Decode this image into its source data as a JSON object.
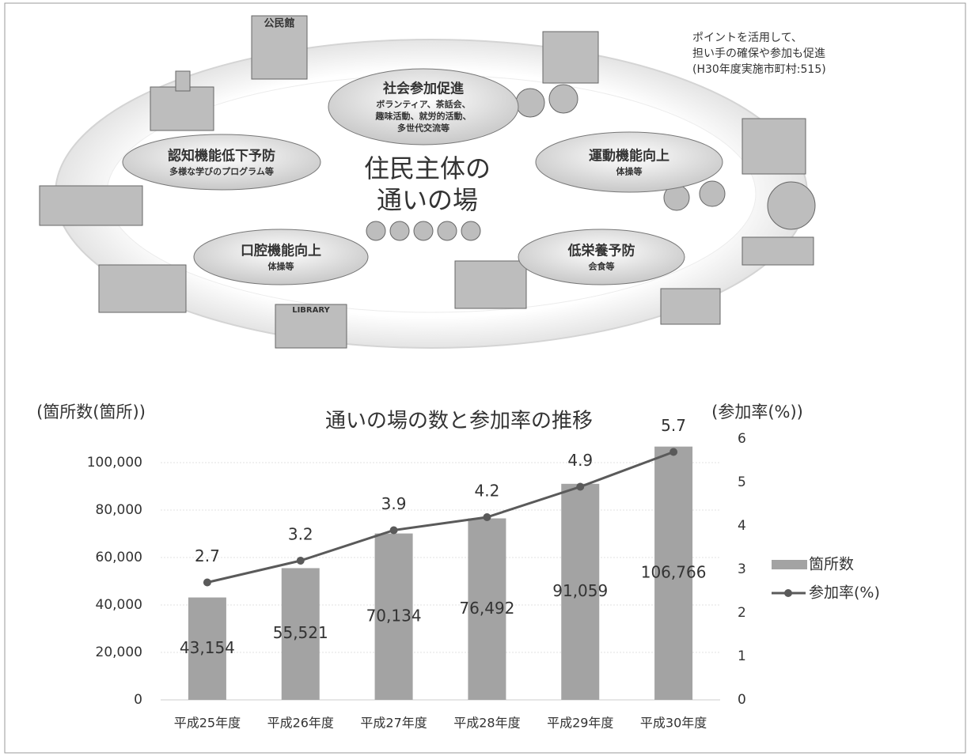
{
  "diagram": {
    "note": [
      "ポイントを活用して、",
      "担い手の確保や参加も促進",
      "(H30年度実施市町村:515)"
    ],
    "center": [
      "住民主体の",
      "通いの場"
    ],
    "bubbles": [
      {
        "title": "社会参加促進",
        "detail": [
          "ボランティア、茶話会、",
          "趣味活動、就労的活動、",
          "多世代交流等"
        ]
      },
      {
        "title": "認知機能低下予防",
        "detail": [
          "多様な学びのプログラム等"
        ]
      },
      {
        "title": "運動機能向上",
        "detail": [
          "体操等"
        ]
      },
      {
        "title": "口腔機能向上",
        "detail": [
          "体操等"
        ]
      },
      {
        "title": "低栄養予防",
        "detail": [
          "会食等"
        ]
      }
    ],
    "signs": [
      "公民館",
      "LIBRARY"
    ]
  },
  "chart_data": {
    "type": "bar",
    "title": "通いの場の数と参加率の推移",
    "y_label": "(箇所数(箇所))",
    "y2_label": "(参加率(%))",
    "categories": [
      "平成25年度",
      "平成26年度",
      "平成27年度",
      "平成28年度",
      "平成29年度",
      "平成30年度"
    ],
    "series": [
      {
        "name": "箇所数",
        "type": "bar",
        "color": "#a3a3a3",
        "values": [
          43154,
          55521,
          70134,
          76492,
          91059,
          106766
        ],
        "value_labels": [
          "43,154",
          "55,521",
          "70,134",
          "76,492",
          "91,059",
          "106,766"
        ]
      },
      {
        "name": "参加率(%)",
        "type": "line",
        "axis": "y2",
        "color": "#5a5a5a",
        "values": [
          2.7,
          3.2,
          3.9,
          4.2,
          4.9,
          5.7
        ]
      }
    ],
    "ylim": [
      0,
      110000
    ],
    "yticks": [
      0,
      {
        "value": 20000,
        "label": "20,000"
      },
      {
        "value": 40000,
        "label": "40,000"
      },
      {
        "value": 60000,
        "label": "60,000"
      },
      {
        "value": 80000,
        "label": "80,000"
      },
      {
        "value": 100000,
        "label": "100,000"
      }
    ],
    "y2lim": [
      0,
      6
    ],
    "y2ticks": [
      0,
      1,
      2,
      3,
      4,
      5,
      6
    ],
    "grid": true,
    "legend": "right"
  }
}
